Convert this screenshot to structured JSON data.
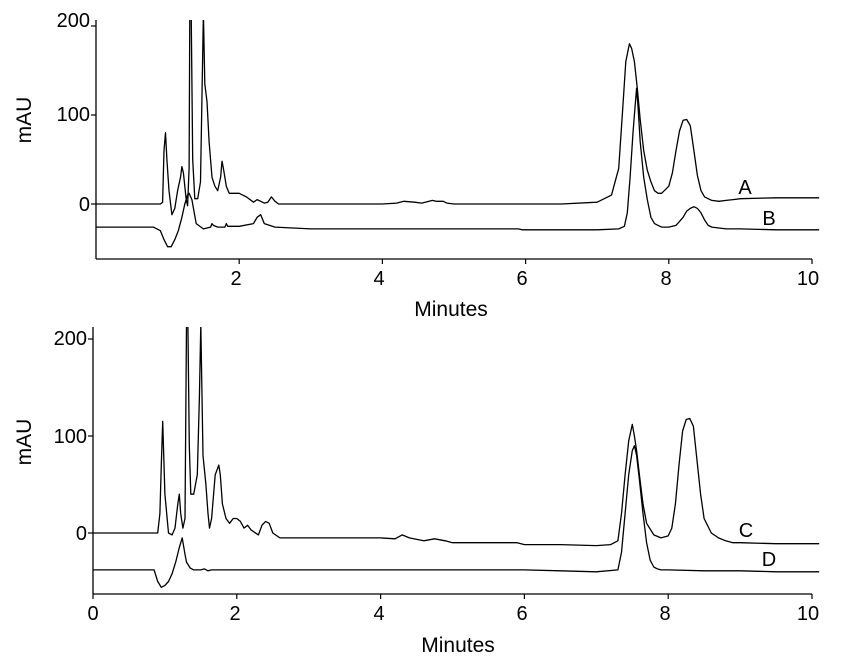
{
  "colors": {
    "line": "#000000",
    "background": "#ffffff"
  },
  "chart_data": [
    {
      "type": "line",
      "xlabel": "Minutes",
      "ylabel": "mAU",
      "xlim": [
        0,
        10.1
      ],
      "ylim": [
        -60,
        215
      ],
      "xticks": [
        2,
        4,
        6,
        8,
        10
      ],
      "yticks": [
        0,
        100,
        200
      ],
      "grid": false,
      "series": [
        {
          "name": "A",
          "x": [
            0.0,
            0.6,
            0.9,
            0.93,
            0.95,
            0.97,
            0.99,
            1.02,
            1.06,
            1.1,
            1.14,
            1.18,
            1.2,
            1.22,
            1.24,
            1.26,
            1.28,
            1.3,
            1.31,
            1.33,
            1.35,
            1.38,
            1.42,
            1.46,
            1.5,
            1.52,
            1.55,
            1.58,
            1.62,
            1.66,
            1.7,
            1.74,
            1.76,
            1.78,
            1.82,
            1.86,
            1.9,
            2.0,
            2.1,
            2.2,
            2.25,
            2.3,
            2.35,
            2.4,
            2.45,
            2.5,
            2.55,
            2.65,
            3.0,
            3.5,
            4.0,
            4.2,
            4.3,
            4.45,
            4.55,
            4.7,
            4.75,
            4.85,
            4.9,
            5.0,
            5.5,
            6.0,
            6.5,
            7.0,
            7.2,
            7.3,
            7.35,
            7.4,
            7.45,
            7.48,
            7.52,
            7.56,
            7.6,
            7.65,
            7.7,
            7.75,
            7.8,
            7.85,
            7.9,
            8.0,
            8.05,
            8.1,
            8.15,
            8.2,
            8.25,
            8.3,
            8.35,
            8.4,
            8.45,
            8.5,
            8.6,
            8.7,
            8.8,
            8.9,
            9.0,
            9.5,
            10.0,
            10.1
          ],
          "y": [
            0,
            0,
            0,
            2,
            60,
            80,
            50,
            15,
            -12,
            -5,
            15,
            30,
            42,
            35,
            20,
            5,
            -2,
            40,
            215,
            215,
            50,
            6,
            6,
            25,
            215,
            135,
            115,
            70,
            30,
            20,
            15,
            30,
            48,
            40,
            20,
            12,
            12,
            12,
            8,
            2,
            5,
            3,
            1,
            2,
            8,
            3,
            0,
            0,
            0,
            0,
            0,
            1,
            3,
            2,
            1,
            4,
            3,
            3,
            1,
            0,
            0,
            0,
            0,
            2,
            10,
            40,
            100,
            160,
            180,
            175,
            160,
            130,
            95,
            60,
            38,
            25,
            15,
            12,
            12,
            20,
            35,
            60,
            82,
            94,
            95,
            88,
            60,
            32,
            15,
            8,
            4,
            3,
            4,
            5,
            6,
            7,
            7,
            7
          ]
        },
        {
          "name": "B",
          "x": [
            0.0,
            0.8,
            0.9,
            0.95,
            1.0,
            1.05,
            1.1,
            1.15,
            1.2,
            1.24,
            1.28,
            1.3,
            1.34,
            1.4,
            1.5,
            1.6,
            1.62,
            1.64,
            1.7,
            1.8,
            1.82,
            1.84,
            2.0,
            2.2,
            2.25,
            2.3,
            2.35,
            2.5,
            3.0,
            4.0,
            5.0,
            5.9,
            5.95,
            6.5,
            7.0,
            7.3,
            7.38,
            7.42,
            7.46,
            7.5,
            7.53,
            7.55,
            7.57,
            7.6,
            7.65,
            7.7,
            7.75,
            7.8,
            7.85,
            7.9,
            8.0,
            8.1,
            8.2,
            8.25,
            8.3,
            8.35,
            8.4,
            8.45,
            8.5,
            8.55,
            8.6,
            8.7,
            8.8,
            9.0,
            9.5,
            10.0,
            10.1
          ],
          "y": [
            -26,
            -26,
            -30,
            -40,
            -48,
            -48,
            -40,
            -30,
            -15,
            0,
            10,
            12,
            5,
            -22,
            -28,
            -26,
            -22,
            -24,
            -26,
            -26,
            -22,
            -25,
            -25,
            -22,
            -15,
            -12,
            -22,
            -26,
            -28,
            -28,
            -28,
            -28,
            -29,
            -29,
            -29,
            -28,
            -25,
            -10,
            30,
            80,
            110,
            130,
            110,
            70,
            30,
            5,
            -15,
            -22,
            -24,
            -26,
            -26,
            -24,
            -15,
            -8,
            -5,
            -3,
            -5,
            -10,
            -18,
            -24,
            -26,
            -27,
            -28,
            -28,
            -29,
            -29,
            -29
          ]
        },
        {
          "name": "C",
          "x": [
            0.0,
            0.8,
            0.9,
            0.93,
            0.95,
            0.97,
            1.0,
            1.05,
            1.1,
            1.14,
            1.18,
            1.2,
            1.22,
            1.25,
            1.28,
            1.3,
            1.32,
            1.34,
            1.36,
            1.4,
            1.45,
            1.48,
            1.5,
            1.53,
            1.57,
            1.6,
            1.62,
            1.65,
            1.7,
            1.75,
            1.77,
            1.8,
            1.85,
            1.9,
            1.95,
            2.0,
            2.05,
            2.1,
            2.15,
            2.2,
            2.3,
            2.35,
            2.4,
            2.45,
            2.5,
            2.6,
            3.0,
            3.5,
            4.0,
            4.2,
            4.3,
            4.4,
            4.6,
            4.75,
            4.9,
            5.0,
            5.5,
            5.9,
            6.0,
            6.5,
            7.0,
            7.2,
            7.3,
            7.35,
            7.4,
            7.45,
            7.5,
            7.53,
            7.56,
            7.6,
            7.65,
            7.7,
            7.8,
            7.9,
            8.0,
            8.05,
            8.1,
            8.15,
            8.2,
            8.25,
            8.3,
            8.35,
            8.4,
            8.45,
            8.5,
            8.6,
            8.7,
            8.8,
            8.9,
            9.0,
            9.5,
            10.0,
            10.1
          ],
          "y": [
            0,
            0,
            0,
            20,
            70,
            115,
            40,
            0,
            -2,
            5,
            30,
            40,
            20,
            5,
            15,
            215,
            215,
            90,
            40,
            40,
            60,
            140,
            215,
            80,
            50,
            20,
            5,
            15,
            60,
            70,
            60,
            30,
            15,
            10,
            15,
            15,
            12,
            5,
            8,
            3,
            -2,
            8,
            12,
            10,
            0,
            -5,
            -5,
            -5,
            -5,
            -6,
            -2,
            -5,
            -8,
            -6,
            -8,
            -10,
            -10,
            -10,
            -12,
            -12,
            -13,
            -12,
            -8,
            20,
            60,
            95,
            112,
            100,
            85,
            60,
            30,
            10,
            -2,
            -5,
            -3,
            5,
            30,
            70,
            105,
            117,
            118,
            110,
            75,
            40,
            15,
            0,
            -5,
            -8,
            -10,
            -10,
            -11,
            -11,
            -11
          ]
        },
        {
          "name": "D",
          "x": [
            0.0,
            0.8,
            0.85,
            0.9,
            0.95,
            1.0,
            1.05,
            1.1,
            1.15,
            1.2,
            1.24,
            1.28,
            1.3,
            1.35,
            1.4,
            1.5,
            1.55,
            1.6,
            1.65,
            2.0,
            2.5,
            3.0,
            4.0,
            5.0,
            6.0,
            6.5,
            7.0,
            7.3,
            7.35,
            7.4,
            7.45,
            7.5,
            7.53,
            7.56,
            7.6,
            7.65,
            7.7,
            7.75,
            7.8,
            7.85,
            7.9,
            8.0,
            8.5,
            9.0,
            9.5,
            10.0,
            10.1
          ],
          "y": [
            -38,
            -38,
            -38,
            -50,
            -56,
            -54,
            -50,
            -42,
            -30,
            -15,
            -5,
            -22,
            -30,
            -36,
            -38,
            -38,
            -37,
            -39,
            -38,
            -38,
            -38,
            -38,
            -38,
            -38,
            -38,
            -39,
            -40,
            -38,
            -20,
            20,
            60,
            85,
            90,
            80,
            55,
            20,
            -10,
            -28,
            -35,
            -37,
            -38,
            -38,
            -39,
            -39,
            -40,
            -40,
            -40
          ]
        }
      ]
    }
  ],
  "panels": [
    {
      "xlabel": "Minutes",
      "ylabel": "mAU",
      "xticks": [
        "2",
        "4",
        "6",
        "8",
        "10"
      ],
      "yticks": [
        "0",
        "100",
        "200"
      ],
      "labels": [
        "A",
        "B"
      ]
    },
    {
      "xlabel": "Minutes",
      "ylabel": "mAU",
      "xticks": [
        "0",
        "2",
        "4",
        "6",
        "8",
        "10"
      ],
      "yticks": [
        "0",
        "100",
        "200"
      ],
      "labels": [
        "C",
        "D"
      ]
    }
  ]
}
